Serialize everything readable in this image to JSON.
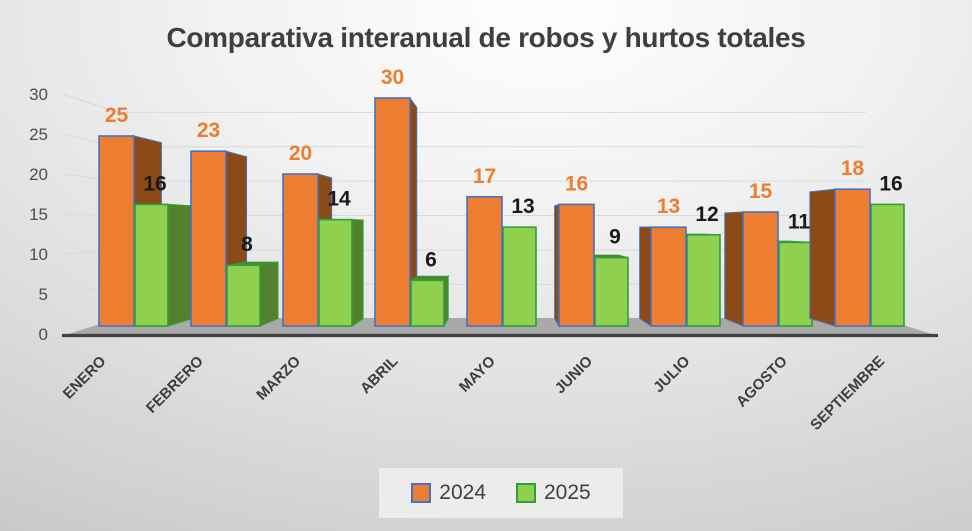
{
  "title": "Comparativa interanual de robos y hurtos totales",
  "legend": {
    "items": [
      {
        "label": "2024",
        "fill": "#ED7D31",
        "border": "#4472C4"
      },
      {
        "label": "2025",
        "fill": "#8FD04E",
        "border": "#2D9F3C"
      }
    ]
  },
  "chart_data": {
    "type": "bar",
    "effect": "3d-clustered-column",
    "title": "Comparativa interanual de robos y hurtos totales",
    "categories": [
      "ENERO",
      "FEBRERO",
      "MARZO",
      "ABRIL",
      "MAYO",
      "JUNIO",
      "JULIO",
      "AGOSTO",
      "SEPTIEMBRE"
    ],
    "series": [
      {
        "name": "2024",
        "values": [
          25,
          23,
          20,
          30,
          17,
          16,
          13,
          15,
          18
        ],
        "fill": "#ED7D31",
        "border": "#4472C4",
        "side": "#8C4A16",
        "label_color": "#ED7D31"
      },
      {
        "name": "2025",
        "values": [
          16,
          8,
          14,
          6,
          13,
          9,
          12,
          11,
          16
        ],
        "fill": "#8FD04E",
        "border": "#2D9F3C",
        "side": "#55812F",
        "label_color": "#1A1A1A"
      }
    ],
    "xlabel": "",
    "ylabel": "",
    "ylim": [
      0,
      30
    ],
    "yticks": [
      0,
      5,
      10,
      15,
      20,
      25,
      30
    ],
    "grid": true,
    "legend_position": "bottom",
    "colors": {
      "gridline": "#D9D9D9",
      "axis_line": "#404040",
      "floor": "#A9A9A9",
      "tick_label": "#4D4D4D",
      "category_label": "#3D3D3D",
      "title": "#3F3F3F"
    }
  }
}
